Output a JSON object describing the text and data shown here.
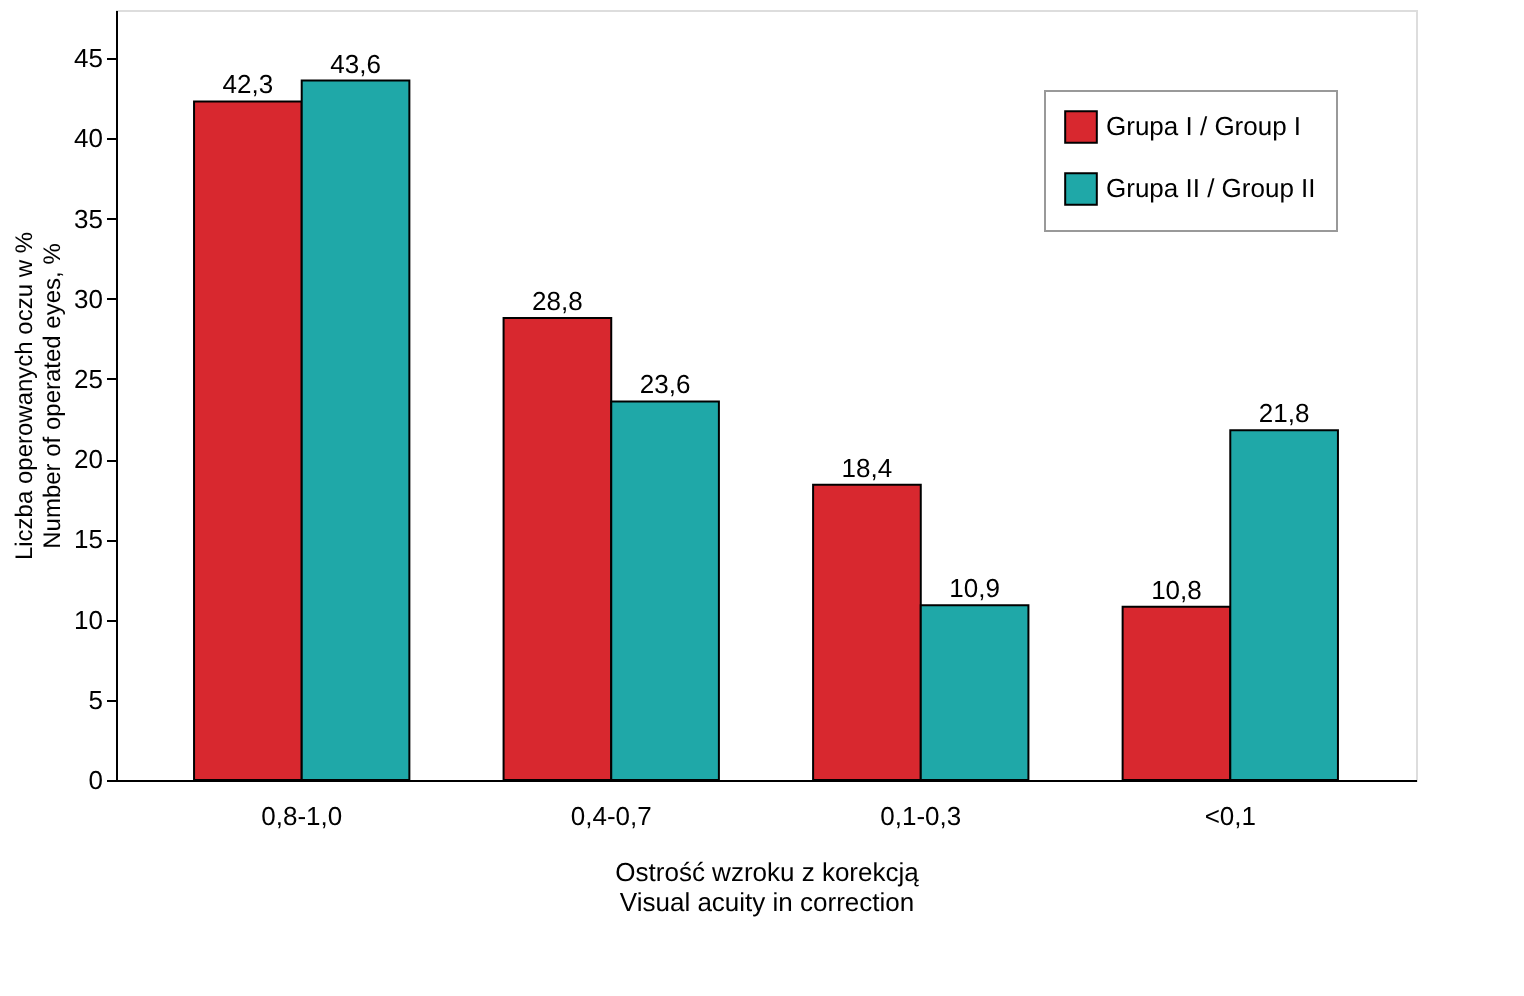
{
  "chart_data": {
    "type": "bar",
    "xlabel": "Ostrość wzroku z korekcją\nVisual acuity in correction",
    "ylabel": "Liczba operowanych oczu w %\nNumber of operated eyes, %",
    "categories": [
      "0,8-1,0",
      "0,4-0,7",
      "0,1-0,3",
      "<0,1"
    ],
    "series": [
      {
        "name": "Grupa I / Group I",
        "color": "#d8282f",
        "values": [
          42.3,
          28.8,
          18.4,
          10.8
        ]
      },
      {
        "name": "Grupa II / Group II",
        "color": "#1fa8a8",
        "values": [
          43.6,
          23.6,
          10.9,
          21.8
        ]
      }
    ],
    "value_labels": [
      [
        "42,3",
        "28,8",
        "18,4",
        "10,8"
      ],
      [
        "43,6",
        "23,6",
        "10,9",
        "21,8"
      ]
    ],
    "ylim": [
      0,
      48
    ],
    "yticks": [
      0,
      5,
      10,
      15,
      20,
      25,
      30,
      35,
      40,
      45
    ],
    "grid": false,
    "legend": "top right"
  }
}
